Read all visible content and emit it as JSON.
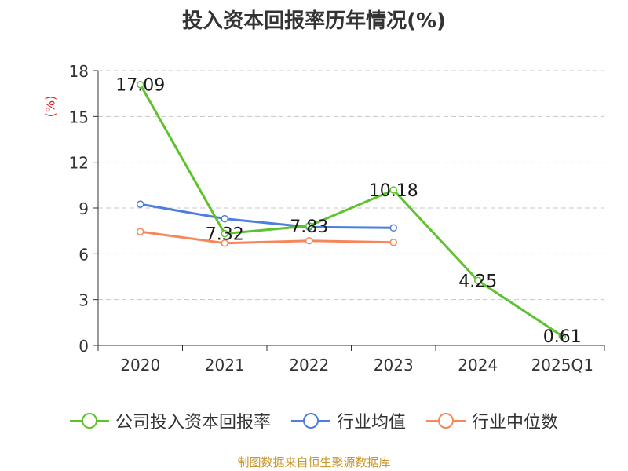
{
  "title": "投入资本回报率历年情况(%)",
  "unit": "(%)",
  "source": "制图数据来自恒生聚源数据库",
  "colors": {
    "company": "#5ec22e",
    "industry_avg": "#4e7fdc",
    "industry_median": "#f4875c",
    "grid": "#c8c8c8",
    "axis": "#333333"
  },
  "chart_data": {
    "type": "line",
    "categories": [
      "2020",
      "2021",
      "2022",
      "2023",
      "2024",
      "2025Q1"
    ],
    "ylim": [
      0,
      18
    ],
    "yticks": [
      0,
      3,
      6,
      9,
      12,
      15,
      18
    ],
    "grid": true,
    "legend_position": "bottom",
    "series": [
      {
        "name": "公司投入资本回报率",
        "color": "#5ec22e",
        "values": [
          17.09,
          7.32,
          7.83,
          10.18,
          4.25,
          0.61
        ],
        "labels": [
          "17.09",
          "7.32",
          "7.83",
          "10.18",
          "4.25",
          "0.61"
        ]
      },
      {
        "name": "行业均值",
        "color": "#4e7fdc",
        "values": [
          9.25,
          8.3,
          7.75,
          7.7,
          null,
          null
        ]
      },
      {
        "name": "行业中位数",
        "color": "#f4875c",
        "values": [
          7.45,
          6.7,
          6.85,
          6.75,
          null,
          null
        ]
      }
    ]
  }
}
